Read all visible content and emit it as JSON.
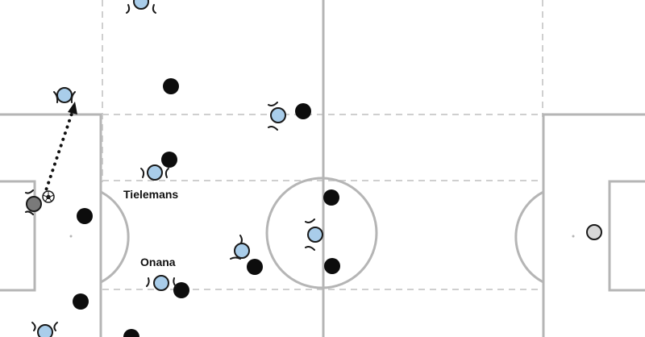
{
  "colors": {
    "pitch_background": "#ffffff",
    "pitch_lines": "#b5b5b5",
    "zone_dashes": "#cfcfcf",
    "team_a_fill": "#a9cdea",
    "team_a_outline": "#1a1a1a",
    "team_b_fill": "#0d0d0d",
    "goalkeeper_fill": "#7a7a7a",
    "opponent_goalkeeper_fill": "#d8d8d8",
    "pass_arrow": "#111111"
  },
  "labels": {
    "tielemans": "Tielemans",
    "onana": "Onana"
  },
  "legend_icons": {
    "ball": "football-icon",
    "pass": "dotted-arrow"
  }
}
